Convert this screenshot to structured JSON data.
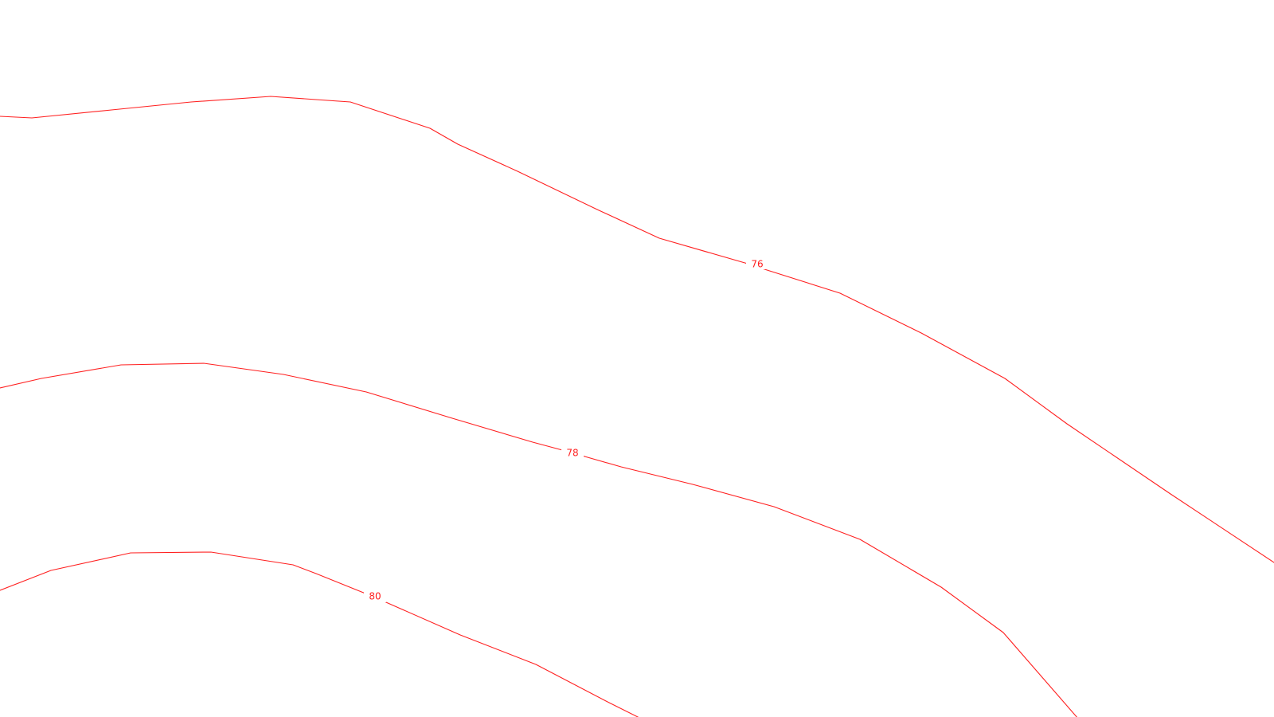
{
  "map": {
    "background_color": "#ffffff",
    "contour_color": "#ff2020",
    "contours": [
      {
        "id": "contour-76",
        "elevation_label": "76"
      },
      {
        "id": "contour-78",
        "elevation_label": "78"
      },
      {
        "id": "contour-80",
        "elevation_label": "80"
      }
    ]
  }
}
